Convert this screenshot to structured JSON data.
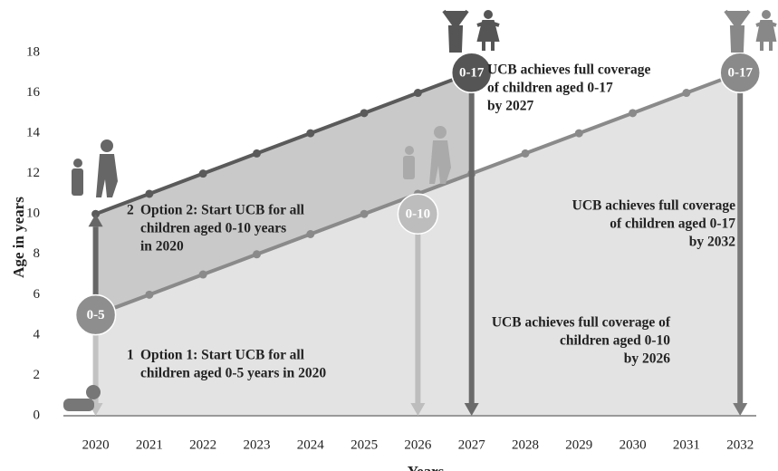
{
  "chart_data": {
    "type": "line",
    "y_label": "Age in years",
    "x_label": "Years",
    "x": [
      2020,
      2021,
      2022,
      2023,
      2024,
      2025,
      2026,
      2027,
      2028,
      2029,
      2030,
      2031,
      2032
    ],
    "xlim": [
      2019.4,
      2032.3
    ],
    "xticks": [
      2020,
      2021,
      2022,
      2023,
      2024,
      2025,
      2026,
      2027,
      2028,
      2029,
      2030,
      2031,
      2032
    ],
    "ylim": [
      0,
      18
    ],
    "yticks": [
      0,
      2,
      4,
      6,
      8,
      10,
      12,
      14,
      16,
      18
    ],
    "series": [
      {
        "color": "#8a8a8a",
        "fill": "#e3e3e3",
        "values": [
          5,
          6,
          7,
          8,
          9,
          10,
          11,
          12,
          13,
          14,
          15,
          16,
          17
        ]
      },
      {
        "color": "#5a5a5a",
        "fill": "#c9c9c9",
        "values": [
          10,
          11,
          12,
          13,
          14,
          15,
          16,
          17,
          null,
          null,
          null,
          null,
          null
        ]
      }
    ],
    "badges": [
      {
        "label": "0-5",
        "x": 2020,
        "y": 5,
        "color": "#8e8e8e"
      },
      {
        "label": "0-10",
        "x": 2026,
        "y": 10,
        "color": "#bdbdbd"
      },
      {
        "label": "0-17",
        "x": 2027,
        "y": 17,
        "color": "#555555"
      },
      {
        "label": "0-17",
        "x": 2032,
        "y": 17,
        "color": "#8a8a8a"
      }
    ],
    "arrows": [
      {
        "x": 2020,
        "from": 0,
        "to": 5,
        "color": "#c2c2c2"
      },
      {
        "x": 2020,
        "from": 5,
        "to": 10,
        "color": "#666666"
      },
      {
        "x": 2026,
        "from": 0,
        "to": 10,
        "color": "#bdbdbd"
      },
      {
        "x": 2027,
        "from": 0,
        "to": 17,
        "color": "#6a6a6a"
      },
      {
        "x": 2032,
        "from": 0,
        "to": 17,
        "color": "#7a7a7a"
      }
    ],
    "notes": [
      {
        "number": "1",
        "lines": [
          "Option 1: Start UCB for all",
          "children aged 0-5 years in 2020"
        ]
      },
      {
        "number": "2",
        "lines": [
          "Option 2: Start UCB for all",
          "children aged 0-10 years",
          "in 2020"
        ]
      },
      {
        "lines": [
          "UCB achieves full coverage",
          "of children aged 0-17",
          "by 2027"
        ]
      },
      {
        "lines": [
          "UCB achieves full coverage",
          "of children aged 0-17",
          "by 2032"
        ]
      },
      {
        "lines": [
          "UCB achieves full coverage of",
          "children aged 0-10",
          "by 2026"
        ]
      }
    ]
  }
}
